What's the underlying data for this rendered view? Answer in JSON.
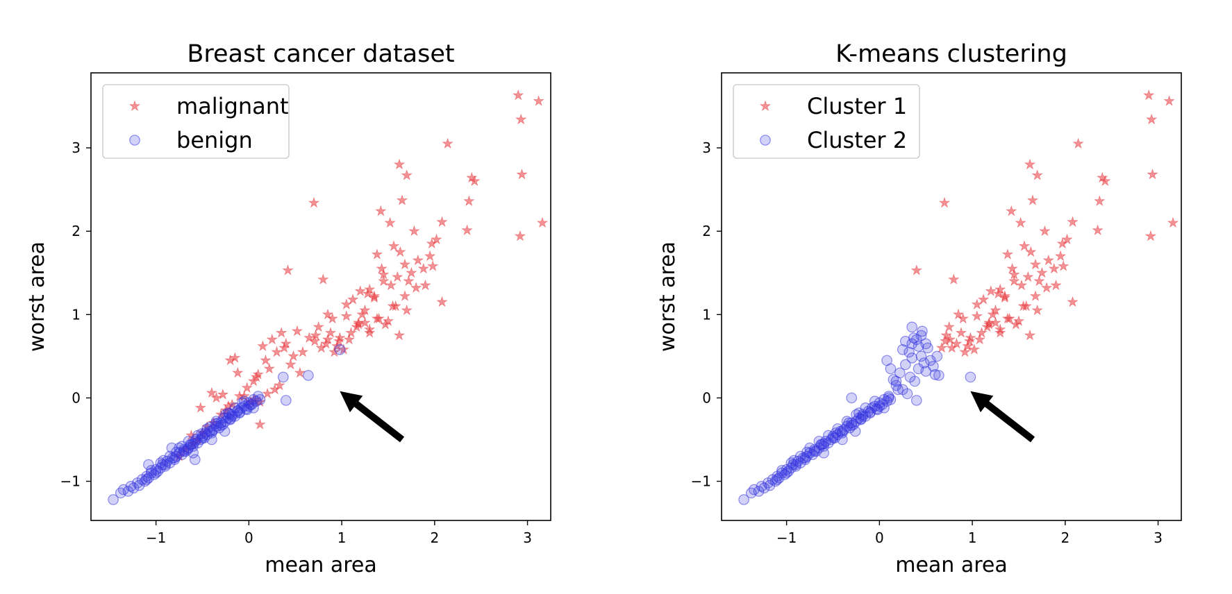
{
  "chart_data": [
    {
      "type": "scatter",
      "title": "Breast cancer dataset",
      "xlabel": "mean area",
      "ylabel": "worst area",
      "xlim": [
        -1.7,
        3.25
      ],
      "ylim": [
        -1.47,
        3.9
      ],
      "xticks": [
        -1,
        0,
        1,
        2,
        3
      ],
      "yticks": [
        -1,
        0,
        1,
        2,
        3
      ],
      "xtick_labels": [
        "−1",
        "0",
        "1",
        "2",
        "3"
      ],
      "ytick_labels": [
        "−1",
        "0",
        "1",
        "2",
        "3"
      ],
      "grid": false,
      "legend": "upper-left",
      "annotation": {
        "type": "arrow",
        "from": [
          1.65,
          -0.5
        ],
        "to": [
          0.98,
          0.08
        ],
        "color": "#000000"
      },
      "series": [
        {
          "name": "malignant",
          "marker": "star",
          "color": "#e8353a",
          "x": [
            2.9,
            3.12,
            2.93,
            2.94,
            2.92,
            3.16,
            2.14,
            1.62,
            1.7,
            2.4,
            2.43,
            2.37,
            2.35,
            2.08,
            1.42,
            1.65,
            1.52,
            1.38,
            1.78,
            1.97,
            1.63,
            2.02,
            1.43,
            1.56,
            1.68,
            1.82,
            1.95,
            1.75,
            1.6,
            1.72,
            1.88,
            1.98,
            1.53,
            1.3,
            1.35,
            1.28,
            1.45,
            1.58,
            1.9,
            1.2,
            1.12,
            1.22,
            1.18,
            1.25,
            1.16,
            1.05,
            0.98,
            1.08,
            0.88,
            0.83,
            0.78,
            0.92,
            0.97,
            1.02,
            0.9,
            0.85,
            0.75,
            0.72,
            0.7,
            0.8,
            1.35,
            1.47,
            1.62,
            1.8,
            2.08,
            1.7,
            1.5,
            1.3,
            1.4,
            0.71,
            0.42,
            0.55,
            0.48,
            0.4,
            0.35,
            0.45,
            0.3,
            0.25,
            0.22,
            0.18,
            0.15,
            0.1,
            0.05,
            0.28,
            0.33,
            0.2,
            0.12,
            0.08,
            -0.02,
            -0.1,
            -0.18,
            -0.25,
            -0.3,
            -0.38,
            -0.45,
            -0.5,
            -0.55,
            -0.6,
            -0.68,
            -0.75,
            -0.2,
            -0.12,
            -0.05,
            0.02,
            -0.15,
            -0.35,
            -0.4,
            -0.22,
            0.12,
            0.06,
            -0.62,
            -0.28,
            -0.52,
            0.38,
            0.52,
            0.58,
            0.65,
            0.85,
            0.95,
            1.1,
            1.18,
            1.3,
            1.38,
            1.55,
            1.68,
            1.45,
            1.25,
            1.05
          ],
          "y": [
            3.63,
            3.56,
            3.34,
            2.68,
            1.94,
            2.1,
            3.05,
            2.8,
            2.67,
            2.64,
            2.6,
            2.36,
            2.01,
            2.11,
            2.24,
            2.37,
            2.1,
            1.72,
            2.0,
            1.85,
            1.75,
            1.9,
            1.55,
            1.82,
            1.6,
            1.65,
            1.7,
            1.5,
            1.45,
            1.4,
            1.55,
            1.58,
            1.35,
            1.3,
            1.2,
            1.25,
            1.4,
            1.1,
            1.35,
            1.28,
            1.18,
            1.0,
            0.9,
            1.05,
            0.85,
            0.98,
            0.72,
            0.7,
            0.78,
            0.65,
            0.6,
            0.55,
            0.68,
            0.58,
            0.95,
            1.0,
            0.85,
            0.75,
            2.34,
            1.42,
            1.22,
            0.88,
            0.75,
            1.32,
            1.15,
            1.05,
            0.92,
            0.78,
            0.95,
            0.68,
            1.53,
            0.3,
            0.5,
            0.65,
            0.78,
            0.4,
            0.55,
            0.7,
            0.35,
            0.45,
            0.62,
            0.28,
            0.2,
            0.1,
            0.15,
            0.05,
            -0.05,
            0.25,
            0.12,
            0.02,
            -0.08,
            -0.15,
            -0.2,
            -0.3,
            -0.35,
            -0.42,
            -0.5,
            -0.55,
            -0.62,
            -0.7,
            0.45,
            0.3,
            0.02,
            -0.05,
            0.48,
            0.0,
            0.06,
            -0.1,
            -0.32,
            -0.02,
            -0.45,
            0.04,
            -0.12,
            0.6,
            0.8,
            0.55,
            0.72,
            0.7,
            0.62,
            0.78,
            0.88,
            0.82,
            0.95,
            1.1,
            1.22,
            1.48,
            0.9,
            1.12
          ]
        },
        {
          "name": "benign",
          "marker": "circle",
          "color": "#3434e0",
          "x": [
            -1.46,
            -1.38,
            -1.35,
            -1.3,
            -1.27,
            -1.24,
            -1.2,
            -1.18,
            -1.15,
            -1.12,
            -1.1,
            -1.08,
            -1.05,
            -1.02,
            -1.0,
            -0.98,
            -0.95,
            -0.93,
            -0.9,
            -0.88,
            -0.85,
            -0.82,
            -0.8,
            -0.78,
            -0.75,
            -0.72,
            -0.7,
            -0.68,
            -0.65,
            -0.62,
            -0.6,
            -0.58,
            -0.55,
            -0.52,
            -0.5,
            -0.48,
            -0.45,
            -0.42,
            -0.4,
            -0.38,
            -0.35,
            -0.32,
            -0.3,
            -0.28,
            -0.25,
            -0.22,
            -0.2,
            -0.18,
            -0.15,
            -0.12,
            -0.1,
            -0.08,
            -0.05,
            -0.02,
            0.0,
            0.03,
            0.05,
            0.08,
            0.1,
            -1.1,
            -1.0,
            -0.9,
            -0.8,
            -0.7,
            -0.6,
            -0.5,
            -0.4,
            -0.3,
            -0.2,
            -0.1,
            0.0,
            -0.95,
            -0.85,
            -0.75,
            -0.65,
            -0.55,
            -0.45,
            -0.35,
            -0.25,
            -0.15,
            -0.05,
            -1.05,
            -0.92,
            -0.78,
            -0.63,
            -0.47,
            -0.33,
            -0.18,
            -0.03,
            0.12,
            -0.72,
            -0.57,
            -0.42,
            -0.27,
            -0.12,
            0.02,
            -0.66,
            -0.51,
            -0.36,
            -0.21,
            -0.07,
            0.37,
            0.64,
            0.98,
            0.4,
            -1.08,
            -0.83,
            -0.58,
            -0.22,
            0.05,
            -0.6,
            -0.4,
            -0.26
          ],
          "y": [
            -1.22,
            -1.14,
            -1.1,
            -1.12,
            -1.06,
            -1.08,
            -1.02,
            -1.05,
            -0.98,
            -1.0,
            -0.94,
            -0.96,
            -0.9,
            -0.92,
            -0.86,
            -0.88,
            -0.84,
            -0.8,
            -0.82,
            -0.76,
            -0.78,
            -0.72,
            -0.74,
            -0.7,
            -0.66,
            -0.68,
            -0.62,
            -0.64,
            -0.6,
            -0.56,
            -0.58,
            -0.52,
            -0.54,
            -0.5,
            -0.46,
            -0.48,
            -0.44,
            -0.4,
            -0.42,
            -0.38,
            -0.34,
            -0.36,
            -0.3,
            -0.32,
            -0.28,
            -0.24,
            -0.26,
            -0.2,
            -0.22,
            -0.16,
            -0.18,
            -0.12,
            -0.1,
            -0.14,
            -0.06,
            -0.08,
            -0.02,
            -0.04,
            0.02,
            -0.98,
            -0.9,
            -0.8,
            -0.72,
            -0.64,
            -0.55,
            -0.48,
            -0.4,
            -0.33,
            -0.25,
            -0.17,
            -0.1,
            -0.78,
            -0.7,
            -0.6,
            -0.52,
            -0.45,
            -0.37,
            -0.28,
            -0.2,
            -0.12,
            -0.04,
            -0.87,
            -0.75,
            -0.65,
            -0.56,
            -0.42,
            -0.3,
            -0.22,
            -0.13,
            -0.02,
            -0.58,
            -0.5,
            -0.35,
            -0.24,
            -0.15,
            -0.08,
            -0.62,
            -0.43,
            -0.31,
            -0.19,
            -0.06,
            0.25,
            0.27,
            0.58,
            -0.03,
            -0.8,
            -0.6,
            -0.74,
            -0.18,
            -0.12,
            -0.66,
            -0.5,
            -0.4
          ]
        }
      ]
    },
    {
      "type": "scatter",
      "title": "K-means clustering",
      "xlabel": "mean area",
      "ylabel": "worst area",
      "xlim": [
        -1.7,
        3.25
      ],
      "ylim": [
        -1.47,
        3.9
      ],
      "xticks": [
        -1,
        0,
        1,
        2,
        3
      ],
      "yticks": [
        -1,
        0,
        1,
        2,
        3
      ],
      "xtick_labels": [
        "−1",
        "0",
        "1",
        "2",
        "3"
      ],
      "ytick_labels": [
        "−1",
        "0",
        "1",
        "2",
        "3"
      ],
      "grid": false,
      "legend": "upper-left",
      "annotation": {
        "type": "arrow",
        "from": [
          1.65,
          -0.5
        ],
        "to": [
          0.98,
          0.08
        ],
        "color": "#000000"
      },
      "series": [
        {
          "name": "Cluster 1",
          "marker": "star",
          "color": "#e8353a",
          "x": [
            2.9,
            3.12,
            2.93,
            2.94,
            2.92,
            3.16,
            2.14,
            1.62,
            1.7,
            2.4,
            2.43,
            2.37,
            2.35,
            2.08,
            1.42,
            1.65,
            1.52,
            1.38,
            1.78,
            1.97,
            1.63,
            2.02,
            1.43,
            1.56,
            1.68,
            1.82,
            1.95,
            1.75,
            1.6,
            1.72,
            1.88,
            1.98,
            1.53,
            1.3,
            1.35,
            1.28,
            1.45,
            1.58,
            1.9,
            1.2,
            1.12,
            1.22,
            1.18,
            1.25,
            1.16,
            1.05,
            0.98,
            1.08,
            0.88,
            0.83,
            0.78,
            0.92,
            0.97,
            1.02,
            0.9,
            0.85,
            0.75,
            0.72,
            0.7,
            0.8,
            1.35,
            1.47,
            1.62,
            1.8,
            2.08,
            1.7,
            1.5,
            1.3,
            1.4,
            0.71,
            0.4,
            0.95,
            1.1,
            1.18,
            1.3,
            1.38,
            1.55,
            1.68,
            1.45,
            1.25,
            1.05,
            0.76,
            0.67
          ],
          "y": [
            3.63,
            3.56,
            3.34,
            2.68,
            1.94,
            2.1,
            3.05,
            2.8,
            2.67,
            2.64,
            2.6,
            2.36,
            2.01,
            2.11,
            2.24,
            2.37,
            2.1,
            1.72,
            2.0,
            1.85,
            1.75,
            1.9,
            1.55,
            1.82,
            1.6,
            1.65,
            1.7,
            1.5,
            1.45,
            1.4,
            1.55,
            1.58,
            1.35,
            1.3,
            1.2,
            1.25,
            1.4,
            1.1,
            1.35,
            1.28,
            1.18,
            1.0,
            0.9,
            1.05,
            0.85,
            0.98,
            0.72,
            0.7,
            0.78,
            0.65,
            0.6,
            0.55,
            0.68,
            0.58,
            0.95,
            1.0,
            0.85,
            0.75,
            2.34,
            1.42,
            1.22,
            0.88,
            0.75,
            1.32,
            1.15,
            1.05,
            0.92,
            0.78,
            0.95,
            0.68,
            1.53,
            0.62,
            0.78,
            0.88,
            0.82,
            0.95,
            1.1,
            1.22,
            1.48,
            0.9,
            1.12,
            0.7,
            0.6
          ]
        },
        {
          "name": "Cluster 2",
          "marker": "circle",
          "color": "#3434e0",
          "x": [
            -1.46,
            -1.38,
            -1.35,
            -1.3,
            -1.27,
            -1.24,
            -1.2,
            -1.18,
            -1.15,
            -1.12,
            -1.1,
            -1.08,
            -1.05,
            -1.02,
            -1.0,
            -0.98,
            -0.95,
            -0.93,
            -0.9,
            -0.88,
            -0.85,
            -0.82,
            -0.8,
            -0.78,
            -0.75,
            -0.72,
            -0.7,
            -0.68,
            -0.65,
            -0.62,
            -0.6,
            -0.58,
            -0.55,
            -0.52,
            -0.5,
            -0.48,
            -0.45,
            -0.42,
            -0.4,
            -0.38,
            -0.35,
            -0.32,
            -0.3,
            -0.28,
            -0.25,
            -0.22,
            -0.2,
            -0.18,
            -0.15,
            -0.12,
            -0.1,
            -0.08,
            -0.05,
            -0.02,
            0.0,
            0.03,
            0.05,
            0.08,
            0.1,
            -1.1,
            -1.0,
            -0.9,
            -0.8,
            -0.7,
            -0.6,
            -0.5,
            -0.4,
            -0.3,
            -0.2,
            -0.1,
            0.0,
            -0.95,
            -0.85,
            -0.75,
            -0.65,
            -0.55,
            -0.45,
            -0.35,
            -0.25,
            -0.15,
            -0.05,
            -1.05,
            -0.92,
            -0.78,
            -0.63,
            -0.47,
            -0.33,
            -0.18,
            -0.03,
            0.12,
            0.18,
            0.22,
            0.25,
            0.28,
            0.3,
            0.33,
            0.35,
            0.38,
            0.42,
            0.45,
            0.5,
            0.55,
            0.6,
            0.28,
            0.32,
            0.37,
            0.42,
            0.46,
            0.48,
            0.52,
            0.58,
            0.62,
            0.64,
            0.08,
            0.12,
            0.2,
            0.15,
            0.25,
            0.35,
            0.4,
            0.45,
            0.5,
            -0.6,
            -0.4,
            -0.26,
            -0.22,
            0.05,
            0.98,
            0.4,
            0.18,
            -0.3,
            0.1,
            0.35
          ],
          "y": [
            -1.22,
            -1.14,
            -1.1,
            -1.12,
            -1.06,
            -1.08,
            -1.02,
            -1.05,
            -0.98,
            -1.0,
            -0.94,
            -0.96,
            -0.9,
            -0.92,
            -0.86,
            -0.88,
            -0.84,
            -0.8,
            -0.82,
            -0.76,
            -0.78,
            -0.72,
            -0.74,
            -0.7,
            -0.66,
            -0.68,
            -0.62,
            -0.64,
            -0.6,
            -0.56,
            -0.58,
            -0.52,
            -0.54,
            -0.5,
            -0.46,
            -0.48,
            -0.44,
            -0.4,
            -0.42,
            -0.38,
            -0.34,
            -0.36,
            -0.3,
            -0.32,
            -0.28,
            -0.24,
            -0.26,
            -0.2,
            -0.22,
            -0.16,
            -0.18,
            -0.12,
            -0.1,
            -0.14,
            -0.06,
            -0.08,
            -0.02,
            -0.04,
            0.02,
            -0.98,
            -0.9,
            -0.8,
            -0.72,
            -0.64,
            -0.55,
            -0.48,
            -0.4,
            -0.33,
            -0.25,
            -0.17,
            -0.1,
            -0.78,
            -0.7,
            -0.6,
            -0.52,
            -0.45,
            -0.37,
            -0.28,
            -0.2,
            -0.12,
            -0.04,
            -0.87,
            -0.75,
            -0.65,
            -0.56,
            -0.42,
            -0.3,
            -0.22,
            -0.13,
            -0.02,
            0.15,
            0.3,
            0.1,
            0.4,
            0.05,
            0.25,
            0.48,
            0.2,
            0.35,
            0.5,
            0.32,
            0.45,
            0.28,
            0.68,
            0.55,
            0.72,
            0.62,
            0.8,
            0.42,
            0.6,
            0.38,
            0.5,
            0.27,
            0.45,
            0.35,
            0.1,
            0.22,
            0.58,
            0.65,
            0.7,
            0.75,
            0.65,
            -0.66,
            -0.5,
            -0.4,
            -0.18,
            -0.12,
            0.25,
            -0.03,
            0.2,
            0.0,
            0.0,
            0.85
          ]
        }
      ]
    }
  ]
}
